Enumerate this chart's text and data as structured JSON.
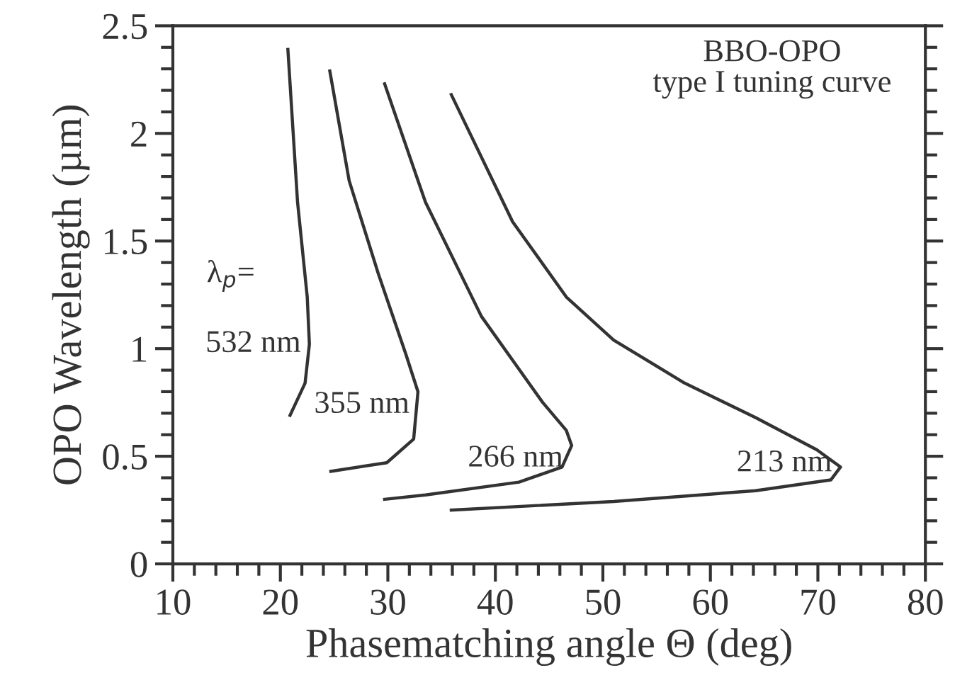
{
  "chart_data": {
    "type": "line",
    "title": "BBO-OPO\ntype I tuning curve",
    "xlabel": "Phasematching angle Θ (deg)",
    "ylabel": "OPO Wavelength (µm)",
    "xlim": [
      10,
      80
    ],
    "ylim": [
      0,
      2.5
    ],
    "xticks": [
      10,
      {
        "value": 12,
        "label": null
      },
      {
        "value": 14,
        "label": null
      },
      {
        "value": 16,
        "label": null
      },
      {
        "value": 18,
        "label": null
      },
      20,
      {
        "value": 22,
        "label": null
      },
      {
        "value": 24,
        "label": null
      },
      {
        "value": 26,
        "label": null
      },
      {
        "value": 28,
        "label": null
      },
      30,
      {
        "value": 32,
        "label": null
      },
      {
        "value": 34,
        "label": null
      },
      {
        "value": 36,
        "label": null
      },
      {
        "value": 38,
        "label": null
      },
      40,
      {
        "value": 42,
        "label": null
      },
      {
        "value": 44,
        "label": null
      },
      {
        "value": 46,
        "label": null
      },
      {
        "value": 48,
        "label": null
      },
      50,
      {
        "value": 52,
        "label": null
      },
      {
        "value": 54,
        "label": null
      },
      {
        "value": 56,
        "label": null
      },
      {
        "value": 58,
        "label": null
      },
      60,
      {
        "value": 62,
        "label": null
      },
      {
        "value": 64,
        "label": null
      },
      {
        "value": 66,
        "label": null
      },
      {
        "value": 68,
        "label": null
      },
      70,
      {
        "value": 72,
        "label": null
      },
      {
        "value": 74,
        "label": null
      },
      {
        "value": 76,
        "label": null
      },
      {
        "value": 78,
        "label": null
      },
      80
    ],
    "yticks": [
      0,
      {
        "value": 0.1,
        "label": null
      },
      {
        "value": 0.2,
        "label": null
      },
      {
        "value": 0.3,
        "label": null
      },
      {
        "value": 0.4,
        "label": null
      },
      0.5,
      {
        "value": 0.6,
        "label": null
      },
      {
        "value": 0.7,
        "label": null
      },
      {
        "value": 0.8,
        "label": null
      },
      {
        "value": 0.9,
        "label": null
      },
      1,
      {
        "value": 1.1,
        "label": null
      },
      {
        "value": 1.2,
        "label": null
      },
      {
        "value": 1.3,
        "label": null
      },
      {
        "value": 1.4,
        "label": null
      },
      1.5,
      {
        "value": 1.6,
        "label": null
      },
      {
        "value": 1.7,
        "label": null
      },
      {
        "value": 1.8,
        "label": null
      },
      {
        "value": 1.9,
        "label": null
      },
      2,
      {
        "value": 2.1,
        "label": null
      },
      {
        "value": 2.2,
        "label": null
      },
      {
        "value": 2.3,
        "label": null
      },
      {
        "value": 2.4,
        "label": null
      },
      2.5
    ],
    "grid": false,
    "legend": false,
    "marker": "none",
    "line_style": "solid",
    "series": [
      {
        "name": "532 nm",
        "color": "#333333",
        "x": [
          20.7,
          21.6,
          22.5,
          22.7,
          22.3,
          20.9
        ],
        "values": [
          2.39,
          1.68,
          1.24,
          1.02,
          0.84,
          0.69
        ]
      },
      {
        "name": "355 nm",
        "color": "#333333",
        "x": [
          24.6,
          26.4,
          29.1,
          31.7,
          32.8,
          32.4,
          29.9,
          24.7
        ],
        "values": [
          2.29,
          1.78,
          1.35,
          0.97,
          0.8,
          0.58,
          0.47,
          0.43
        ]
      },
      {
        "name": "266 nm",
        "color": "#333333",
        "x": [
          29.7,
          33.5,
          38.7,
          44.4,
          46.6,
          47.1,
          46.2,
          42.2,
          33.5,
          29.7
        ],
        "values": [
          2.23,
          1.68,
          1.15,
          0.75,
          0.62,
          0.55,
          0.45,
          0.38,
          0.32,
          0.3
        ]
      },
      {
        "name": "213 nm",
        "color": "#333333",
        "x": [
          35.9,
          41.6,
          46.6,
          51.0,
          57.6,
          64.2,
          69.9,
          72.1,
          71.2,
          64.2,
          51.0,
          35.9
        ],
        "values": [
          2.18,
          1.59,
          1.24,
          1.04,
          0.84,
          0.68,
          0.53,
          0.45,
          0.39,
          0.34,
          0.29,
          0.25
        ]
      }
    ],
    "annotations": [
      "λ$_{p}$="
    ]
  }
}
